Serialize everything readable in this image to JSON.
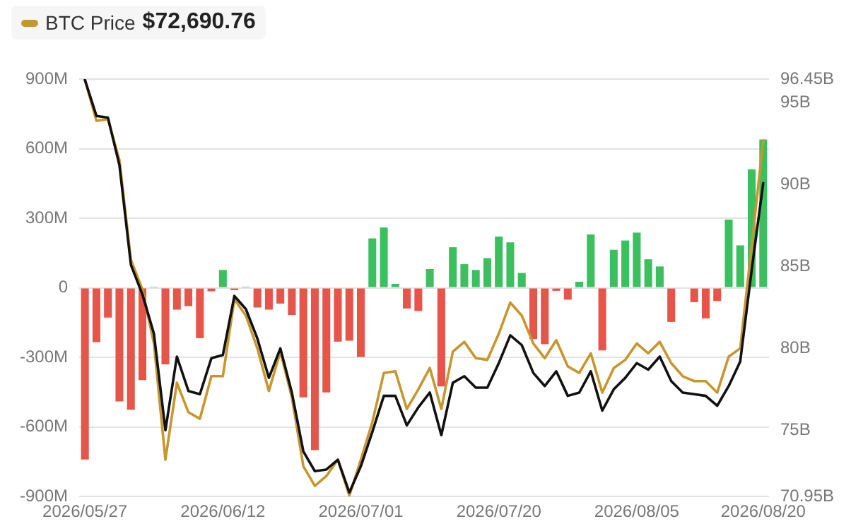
{
  "chart_data": {
    "type": "bar",
    "legend": "top left",
    "grid": "y",
    "annotations": [
      "$72,690.76"
    ],
    "categories": [
      "2026/05/27",
      null,
      null,
      null,
      null,
      null,
      null,
      null,
      null,
      null,
      null,
      null,
      "2026/06/12",
      null,
      null,
      null,
      null,
      null,
      null,
      null,
      null,
      null,
      null,
      null,
      "2026/07/01",
      null,
      null,
      null,
      null,
      null,
      null,
      null,
      null,
      null,
      null,
      null,
      "2026/07/20",
      null,
      null,
      null,
      null,
      null,
      null,
      null,
      null,
      null,
      null,
      null,
      "2026/08/05",
      null,
      null,
      null,
      null,
      null,
      null,
      null,
      null,
      null,
      null,
      "2026/08/20"
    ],
    "ylim": [
      -900,
      900
    ],
    "yticks": [
      {
        "value": -900,
        "label": "-900M"
      },
      {
        "value": -600,
        "label": "-600M"
      },
      {
        "value": -300,
        "label": "-300M"
      },
      0,
      {
        "value": 300,
        "label": "300M"
      },
      {
        "value": 600,
        "label": "600M"
      },
      {
        "value": 900,
        "label": "900M"
      }
    ],
    "y2lim": [
      70.95,
      96.45
    ],
    "y2ticks": [
      {
        "value": 70.95,
        "label": "70.95B"
      },
      {
        "value": 75,
        "label": "75B"
      },
      {
        "value": 80,
        "label": "80B"
      },
      {
        "value": 85,
        "label": "85B"
      },
      {
        "value": 90,
        "label": "90B"
      },
      {
        "value": 95,
        "label": "95B"
      },
      {
        "value": 96.45,
        "label": "96.45B"
      }
    ],
    "series": [
      {
        "colors": [
          "#e5554a",
          "#e5554a",
          "#e5554a",
          "#e5554a",
          "#e5554a",
          "#e5554a",
          "#3cbf5f",
          "#e5554a",
          "#e5554a",
          "#e5554a",
          "#e5554a",
          "#e5554a",
          "#3cbf5f",
          "#e5554a",
          "#3cbf5f",
          "#e5554a",
          "#e5554a",
          "#e5554a",
          "#e5554a",
          "#e5554a",
          "#e5554a",
          "#e5554a",
          "#e5554a",
          "#e5554a",
          "#e5554a",
          "#3cbf5f",
          "#3cbf5f",
          "#3cbf5f",
          "#e5554a",
          "#e5554a",
          "#3cbf5f",
          "#e5554a",
          "#3cbf5f",
          "#3cbf5f",
          "#3cbf5f",
          "#3cbf5f",
          "#3cbf5f",
          "#3cbf5f",
          "#3cbf5f",
          "#e5554a",
          "#e5554a",
          "#e5554a",
          "#e5554a",
          "#3cbf5f",
          "#3cbf5f",
          "#e5554a",
          "#3cbf5f",
          "#3cbf5f",
          "#3cbf5f",
          "#3cbf5f",
          "#3cbf5f",
          "#e5554a",
          "#3cbf5f",
          "#e5554a",
          "#e5554a",
          "#e5554a",
          "#3cbf5f",
          "#3cbf5f",
          "#3cbf5f",
          "#3cbf5f"
        ],
        "values": [
          -740,
          -234,
          -128,
          -490,
          -526,
          -398,
          5,
          -330,
          -94,
          -79,
          -217,
          -15,
          77,
          -10,
          5,
          -85,
          -94,
          -68,
          -117,
          -472,
          -700,
          -451,
          -232,
          -228,
          -298,
          213,
          260,
          17,
          -89,
          -100,
          81,
          -425,
          175,
          102,
          77,
          128,
          221,
          196,
          64,
          -221,
          -243,
          -13,
          -51,
          26,
          230,
          -270,
          164,
          204,
          238,
          123,
          92,
          -147,
          null,
          -62,
          -132,
          -57,
          294,
          183,
          511,
          640
        ]
      },
      {
        "type": "line",
        "axis": "y2",
        "color": "#111111",
        "values": [
          96.4,
          94.2,
          94.1,
          91.2,
          85.1,
          83.3,
          80.9,
          75.0,
          79.5,
          77.4,
          77.2,
          79.4,
          79.6,
          83.2,
          82.4,
          80.6,
          78.2,
          80.0,
          77.3,
          73.7,
          72.5,
          72.6,
          73.2,
          71.2,
          72.8,
          74.9,
          77.1,
          77.1,
          75.3,
          76.4,
          77.3,
          74.7,
          77.9,
          78.3,
          77.6,
          77.6,
          79.1,
          80.8,
          80.2,
          78.5,
          77.7,
          78.6,
          77.1,
          77.3,
          78.6,
          76.2,
          77.5,
          78.2,
          79.1,
          78.7,
          79.5,
          78.0,
          77.3,
          77.2,
          77.1,
          76.5,
          77.7,
          79.2,
          84.8,
          90.1
        ]
      },
      {
        "type": "line",
        "axis": "y2",
        "name": "BTC Price",
        "color": "#c8962e",
        "values": [
          96.4,
          93.9,
          94.0,
          91.5,
          85.4,
          83.6,
          80.3,
          73.2,
          77.9,
          76.1,
          75.7,
          78.3,
          78.3,
          83.0,
          82.0,
          80.0,
          77.4,
          79.8,
          77.0,
          72.8,
          71.6,
          72.2,
          73.2,
          71.0,
          73.2,
          75.5,
          78.5,
          78.6,
          76.3,
          77.5,
          78.8,
          76.3,
          79.8,
          80.4,
          79.4,
          79.3,
          80.9,
          82.8,
          82.0,
          80.3,
          79.4,
          80.5,
          78.9,
          78.5,
          79.7,
          77.3,
          78.8,
          79.3,
          80.3,
          79.7,
          80.4,
          79.1,
          78.3,
          78.0,
          78.0,
          77.3,
          79.5,
          80.0,
          86.3,
          92.7
        ]
      }
    ]
  }
}
